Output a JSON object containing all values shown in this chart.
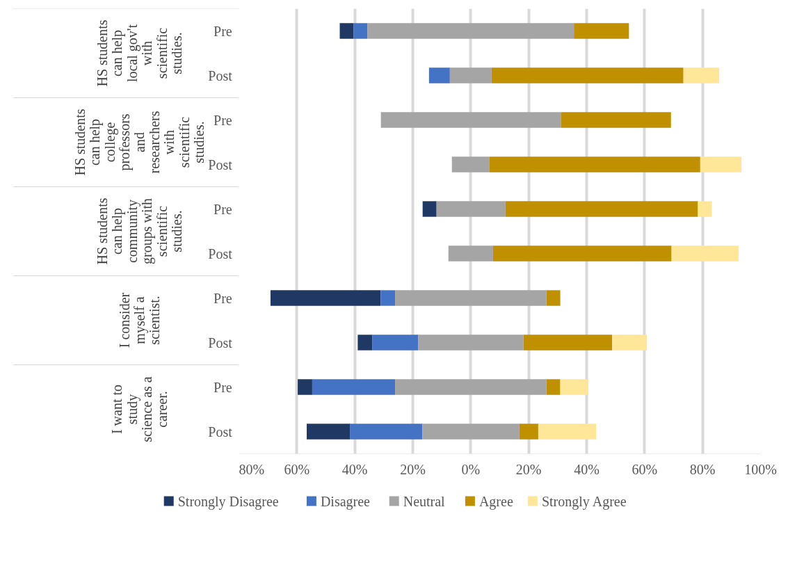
{
  "chart_data": {
    "type": "bar",
    "orientation": "horizontal",
    "categories": [
      "Pre",
      "Post",
      "Pre",
      "Post",
      "Pre",
      "Post",
      "Pre",
      "Post",
      "Pre",
      "Post"
    ],
    "series": [
      {
        "name": "Strongly Disagree",
        "color": "#203864",
        "base": [
          -45.2,
          null,
          null,
          null,
          -16.6,
          null,
          -69.1,
          -39.0,
          -59.7,
          -56.6
        ],
        "values": [
          4.8,
          null,
          null,
          null,
          4.8,
          null,
          38.0,
          5.0,
          5.0,
          14.9
        ]
      },
      {
        "name": "Disagree",
        "color": "#4472c4",
        "base": [
          -40.4,
          -14.4,
          null,
          null,
          null,
          null,
          -31.1,
          -34.0,
          -54.7,
          -41.7
        ],
        "values": [
          4.8,
          7.2,
          null,
          null,
          null,
          null,
          5.0,
          15.9,
          28.6,
          25.0
        ]
      },
      {
        "name": "Neutral",
        "color": "#a5a5a5",
        "base": [
          -35.6,
          -7.2,
          -31.0,
          -6.5,
          -11.8,
          -7.7,
          -26.1,
          -18.1,
          -26.1,
          -16.7
        ],
        "values": [
          71.2,
          14.4,
          62.1,
          13.0,
          23.8,
          15.4,
          52.2,
          36.3,
          52.2,
          33.5
        ]
      },
      {
        "name": "Agree",
        "color": "#bf9000",
        "base": [
          35.6,
          7.2,
          31.1,
          6.5,
          12.0,
          7.7,
          26.1,
          18.2,
          26.1,
          16.8
        ],
        "values": [
          19.0,
          66.2,
          38.0,
          72.7,
          66.4,
          61.6,
          4.8,
          30.6,
          4.8,
          6.5
        ]
      },
      {
        "name": "Strongly Agree",
        "color": "#ffe699",
        "base": [
          null,
          73.4,
          null,
          79.2,
          78.4,
          69.3,
          null,
          48.8,
          30.9,
          23.3
        ],
        "values": [
          null,
          12.3,
          null,
          14.2,
          4.8,
          23.1,
          null,
          12.0,
          9.6,
          20.0
        ]
      }
    ],
    "annotations": [
      "HS students can help local gov't with scientific studies.",
      "HS students can help college professors and researchers with scientific studies.",
      "HS students can help community groups with scientific studies.",
      "I consider myself a scientist.",
      "I want to study science as a career."
    ],
    "xlim": [
      -80,
      100
    ],
    "xticks": [
      {
        "value": -80,
        "label": "80%"
      },
      {
        "value": -60,
        "label": "60%"
      },
      {
        "value": -40,
        "label": "40%"
      },
      {
        "value": -20,
        "label": "20%"
      },
      {
        "value": 0,
        "label": "0%"
      },
      {
        "value": 20,
        "label": "20%"
      },
      {
        "value": 40,
        "label": "40%"
      },
      {
        "value": 60,
        "label": "60%"
      },
      {
        "value": 80,
        "label": "80%"
      },
      {
        "value": 100,
        "label": "100%"
      }
    ],
    "grid": "x",
    "legend": "bottom"
  }
}
